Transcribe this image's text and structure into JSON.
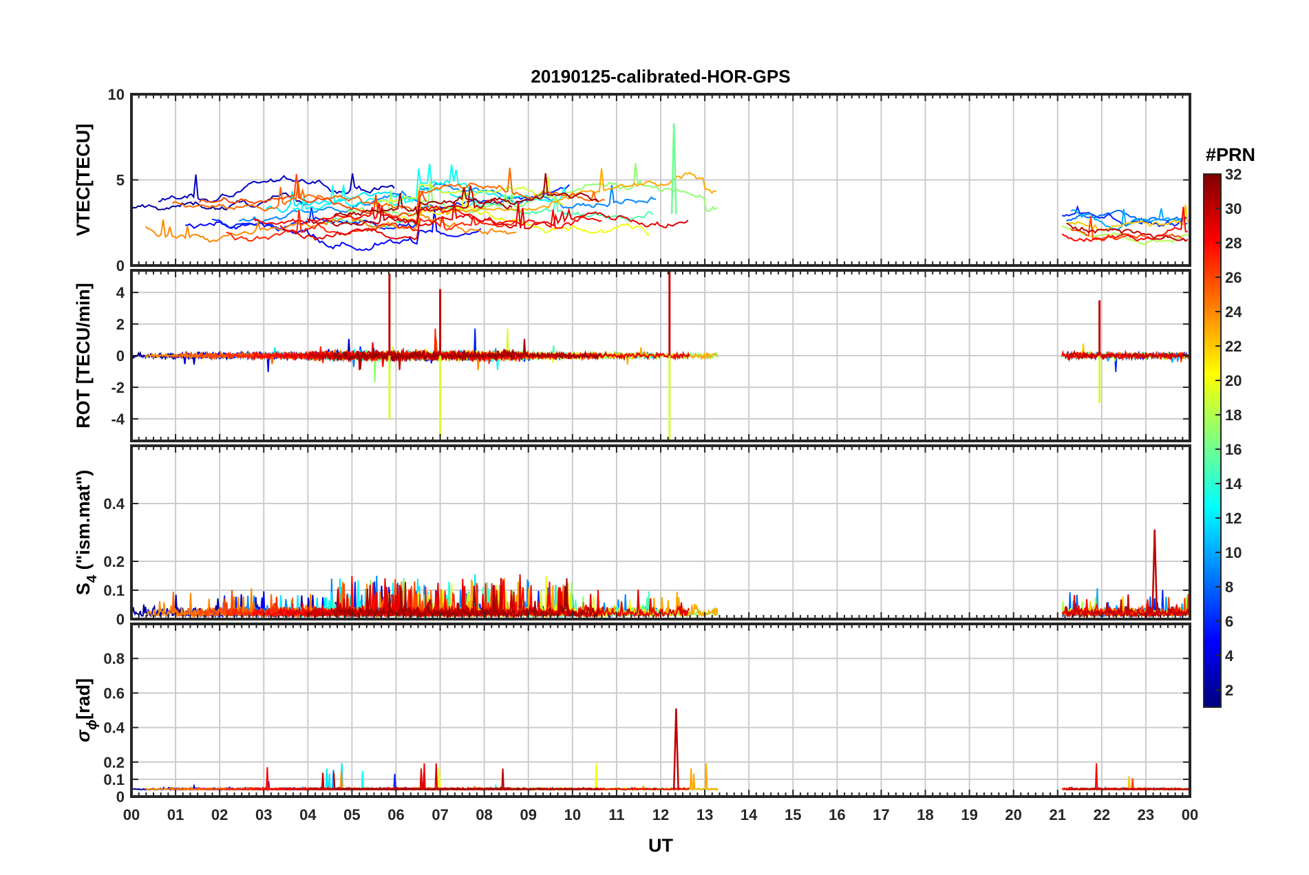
{
  "chart_data": {
    "type": "line",
    "title": "20190125-calibrated-HOR-GPS",
    "xlabel": "UT",
    "x_ticks": [
      "00",
      "01",
      "02",
      "03",
      "04",
      "05",
      "06",
      "07",
      "08",
      "09",
      "10",
      "11",
      "12",
      "13",
      "14",
      "15",
      "16",
      "17",
      "18",
      "19",
      "20",
      "21",
      "22",
      "23",
      "00"
    ],
    "x_range_hours": [
      0,
      24
    ],
    "data_gaps_hours": [
      [
        13.3,
        21.1
      ]
    ],
    "colorbar": {
      "label": "#PRN",
      "range": [
        1,
        32
      ],
      "ticks": [
        "32",
        "30",
        "28",
        "26",
        "24",
        "22",
        "20",
        "18",
        "16",
        "14",
        "12",
        "10",
        "8",
        "6",
        "4",
        "2"
      ]
    },
    "panels": [
      {
        "id": "vtec",
        "ylabel": "VTEC[TECU]",
        "ylim": [
          0,
          10
        ],
        "yticks": [
          "0",
          "5",
          "10"
        ],
        "ytick_values": [
          0,
          5,
          10
        ],
        "grid": true,
        "baseline_range": [
          1,
          4
        ],
        "peak_value": 8.3,
        "peak_hour": 12.3
      },
      {
        "id": "rot",
        "ylabel": "ROT [TECU/min]",
        "ylim": [
          -5.4,
          5.4
        ],
        "yticks": [
          "-4",
          "-2",
          "0",
          "2",
          "4"
        ],
        "ytick_values": [
          -4,
          -2,
          0,
          2,
          4
        ],
        "grid": true,
        "noise_amplitude": 0.5,
        "spikes": [
          {
            "hour": 5.85,
            "value": 5.2
          },
          {
            "hour": 5.85,
            "value": -4.0
          },
          {
            "hour": 7.0,
            "value": 4.2
          },
          {
            "hour": 7.0,
            "value": -5.2
          },
          {
            "hour": 12.2,
            "value": 5.4
          },
          {
            "hour": 12.2,
            "value": -5.4
          },
          {
            "hour": 21.95,
            "value": 3.5
          },
          {
            "hour": 21.95,
            "value": -3.0
          }
        ]
      },
      {
        "id": "s4",
        "ylabel": "S4 (\"ism.mat\")",
        "ylabel_main": "S",
        "ylabel_sub": "4",
        "ylabel_rest": " (\"ism.mat\")",
        "ylim": [
          0,
          0.6
        ],
        "yticks": [
          "0",
          "0.1",
          "0.2",
          "0.4"
        ],
        "ytick_values": [
          0,
          0.1,
          0.2,
          0.4
        ],
        "grid": true,
        "peak_value": 0.31,
        "peak_hour": 23.2
      },
      {
        "id": "sigma_phi",
        "ylabel": "σϕ[rad]",
        "ylabel_main": "σ",
        "ylabel_sub": "ϕ",
        "ylabel_rest": "[rad]",
        "ylim": [
          0,
          1.0
        ],
        "yticks": [
          "0",
          "0.1",
          "0.2",
          "0.4",
          "0.6",
          "0.8"
        ],
        "ytick_values": [
          0,
          0.1,
          0.2,
          0.4,
          0.6,
          0.8
        ],
        "grid": true,
        "baseline": 0.04,
        "peak_value": 0.51,
        "peak_hour": 12.35
      }
    ]
  }
}
